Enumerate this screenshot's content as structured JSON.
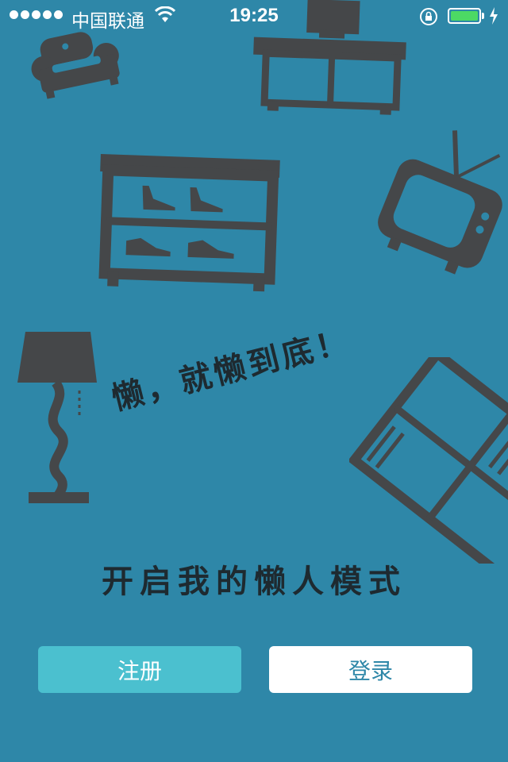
{
  "status_bar": {
    "carrier": "中国联通",
    "time": "19:25",
    "battery_percent": 100,
    "colors": {
      "battery_fill": "#4cd964"
    }
  },
  "slogan": {
    "tagline": "懒，就懒到底！",
    "mode_text": "开启我的懒人模式"
  },
  "buttons": {
    "register_label": "注册",
    "login_label": "登录"
  },
  "colors": {
    "background": "#2e87a8",
    "register_button": "#4bc0cf",
    "login_button": "#ffffff",
    "furniture": "#454749"
  },
  "illustrations": [
    "sofa-icon",
    "tv-cabinet-icon",
    "shoe-cabinet-icon",
    "tv-icon",
    "floor-lamp-icon",
    "bookshelf-icon"
  ]
}
